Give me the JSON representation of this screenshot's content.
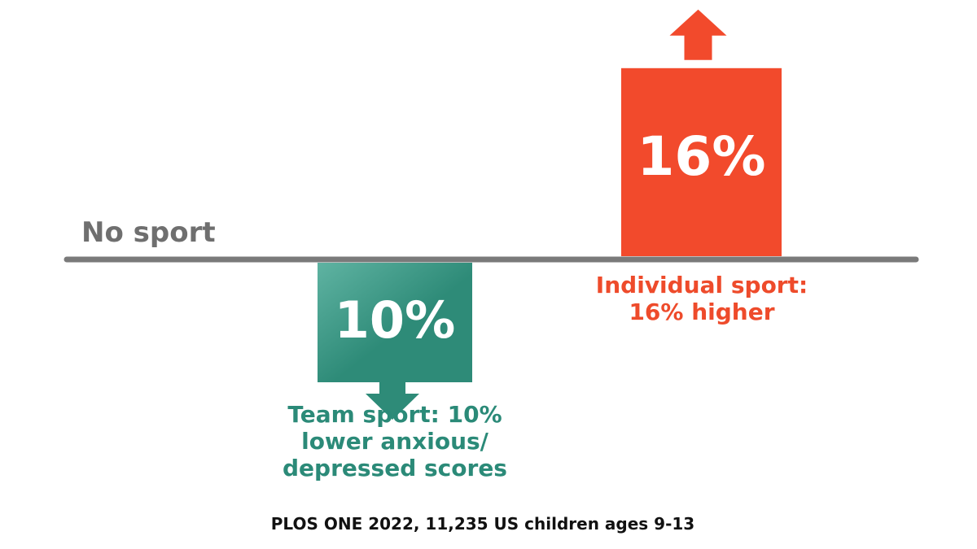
{
  "baseline_label": "No sport",
  "source": "PLOS ONE 2022, 11,235 US children ages 9-13",
  "colors": {
    "baseline": "#7a7a7a",
    "team": "#2e8b78",
    "team_gradient_top": "#5fb3a2",
    "team_text": "#2b8a78",
    "individual": "#f24a2c",
    "individual_text": "#ee4b2b",
    "baseline_label": "#6f6f6f"
  },
  "chart_data": {
    "type": "bar",
    "categories": [
      "Team sport",
      "Individual sport"
    ],
    "values": [
      -10,
      16
    ],
    "unit": "%",
    "baseline": 0,
    "bars": [
      {
        "category": "Team sport",
        "value": -10,
        "value_label": "10%",
        "direction": "down",
        "caption": "Team sport: 10%\nlower anxious/\ndepressed scores",
        "color": "#2e8b78"
      },
      {
        "category": "Individual sport",
        "value": 16,
        "value_label": "16%",
        "direction": "up",
        "caption": "Individual sport:\n16% higher",
        "color": "#f24a2c"
      }
    ],
    "grid": false,
    "legend": "none"
  }
}
